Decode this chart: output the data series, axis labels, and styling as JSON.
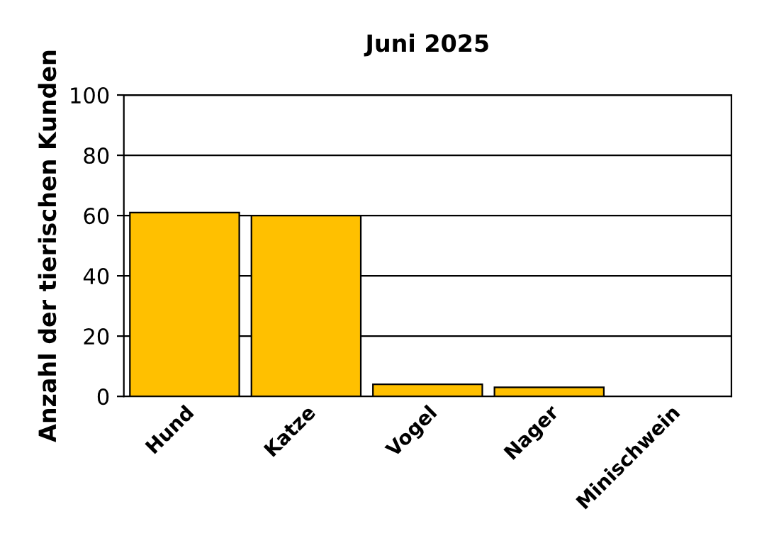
{
  "chart_data": {
    "type": "bar",
    "title": "Juni 2025",
    "ylabel": "Anzahl der tierischen Kunden",
    "categories": [
      "Hund",
      "Katze",
      "Vogel",
      "Nager",
      "Minischwein"
    ],
    "values": [
      61,
      60,
      4,
      3,
      0
    ],
    "color": "#ffc000",
    "ylim": [
      0,
      100
    ],
    "yticks": [
      0,
      20,
      40,
      60,
      80,
      100
    ],
    "grid": "y",
    "legend": false
  }
}
